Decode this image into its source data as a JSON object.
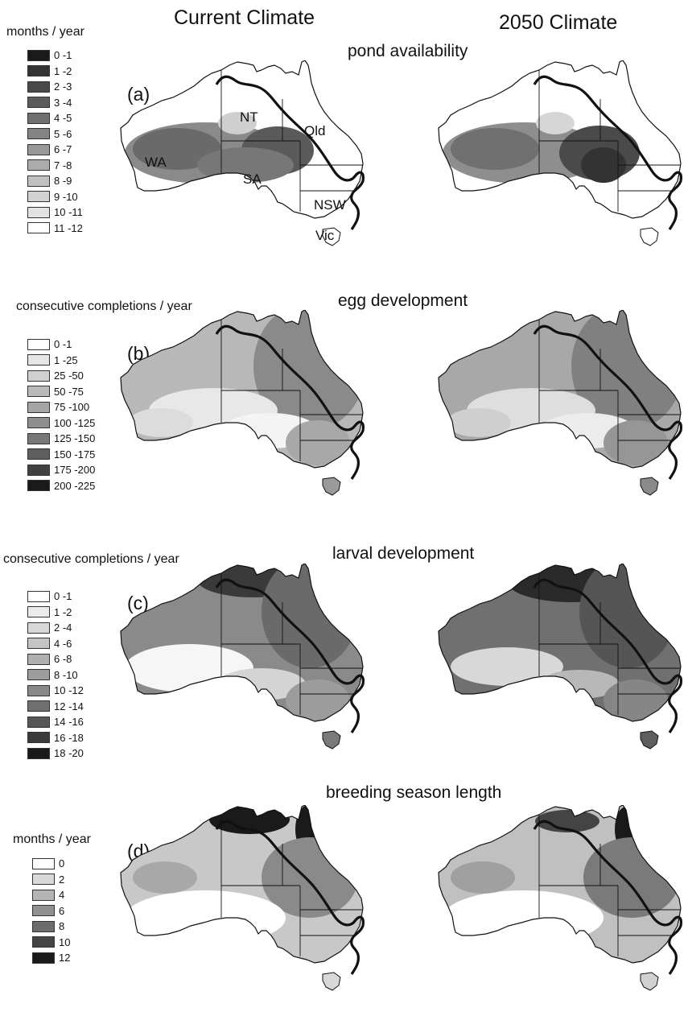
{
  "columns": {
    "current": "Current Climate",
    "future": "2050 Climate"
  },
  "panels": [
    {
      "label": "(a)",
      "title": "pond availability",
      "legend_title": "months / year",
      "legend": [
        {
          "label": "0 -1",
          "color": "#1a1a1a"
        },
        {
          "label": "1 -2",
          "color": "#333333"
        },
        {
          "label": "2 -3",
          "color": "#494949"
        },
        {
          "label": "3 -4",
          "color": "#5c5c5c"
        },
        {
          "label": "4 -5",
          "color": "#707070"
        },
        {
          "label": "5 -6",
          "color": "#848484"
        },
        {
          "label": "6 -7",
          "color": "#989898"
        },
        {
          "label": "7 -8",
          "color": "#acacac"
        },
        {
          "label": "8 -9",
          "color": "#c0c0c0"
        },
        {
          "label": "9 -10",
          "color": "#d2d2d2"
        },
        {
          "label": "10 -11",
          "color": "#e3e3e3"
        },
        {
          "label": "11 -12",
          "color": "#ffffff"
        }
      ],
      "regions": [
        "NT",
        "Qld",
        "WA",
        "SA",
        "NSW",
        "Vic"
      ]
    },
    {
      "label": "(b)",
      "title": "egg development",
      "legend_title": "consecutive completions / year",
      "legend": [
        {
          "label": "0 -1",
          "color": "#ffffff"
        },
        {
          "label": "1 -25",
          "color": "#e6e6e6"
        },
        {
          "label": "25 -50",
          "color": "#d0d0d0"
        },
        {
          "label": "50 -75",
          "color": "#bababa"
        },
        {
          "label": "75 -100",
          "color": "#a4a4a4"
        },
        {
          "label": "100 -125",
          "color": "#8e8e8e"
        },
        {
          "label": "125 -150",
          "color": "#787878"
        },
        {
          "label": "150 -175",
          "color": "#5e5e5e"
        },
        {
          "label": "175 -200",
          "color": "#404040"
        },
        {
          "label": "200 -225",
          "color": "#1a1a1a"
        }
      ]
    },
    {
      "label": "(c)",
      "title": "larval development",
      "legend_title": "consecutive completions / year",
      "legend": [
        {
          "label": "0 -1",
          "color": "#ffffff"
        },
        {
          "label": "1 -2",
          "color": "#ebebeb"
        },
        {
          "label": "2 -4",
          "color": "#d8d8d8"
        },
        {
          "label": "4 -6",
          "color": "#c4c4c4"
        },
        {
          "label": "6 -8",
          "color": "#b0b0b0"
        },
        {
          "label": "8 -10",
          "color": "#9c9c9c"
        },
        {
          "label": "10 -12",
          "color": "#888888"
        },
        {
          "label": "12 -14",
          "color": "#707070"
        },
        {
          "label": "14 -16",
          "color": "#575757"
        },
        {
          "label": "16 -18",
          "color": "#3a3a3a"
        },
        {
          "label": "18 -20",
          "color": "#1a1a1a"
        }
      ]
    },
    {
      "label": "(d)",
      "title": "breeding season length",
      "legend_title": "months / year",
      "legend": [
        {
          "label": "0",
          "color": "#ffffff"
        },
        {
          "label": "2",
          "color": "#d8d8d8"
        },
        {
          "label": "4",
          "color": "#b4b4b4"
        },
        {
          "label": "6",
          "color": "#909090"
        },
        {
          "label": "8",
          "color": "#6c6c6c"
        },
        {
          "label": "10",
          "color": "#444444"
        },
        {
          "label": "12",
          "color": "#1a1a1a"
        }
      ]
    }
  ]
}
